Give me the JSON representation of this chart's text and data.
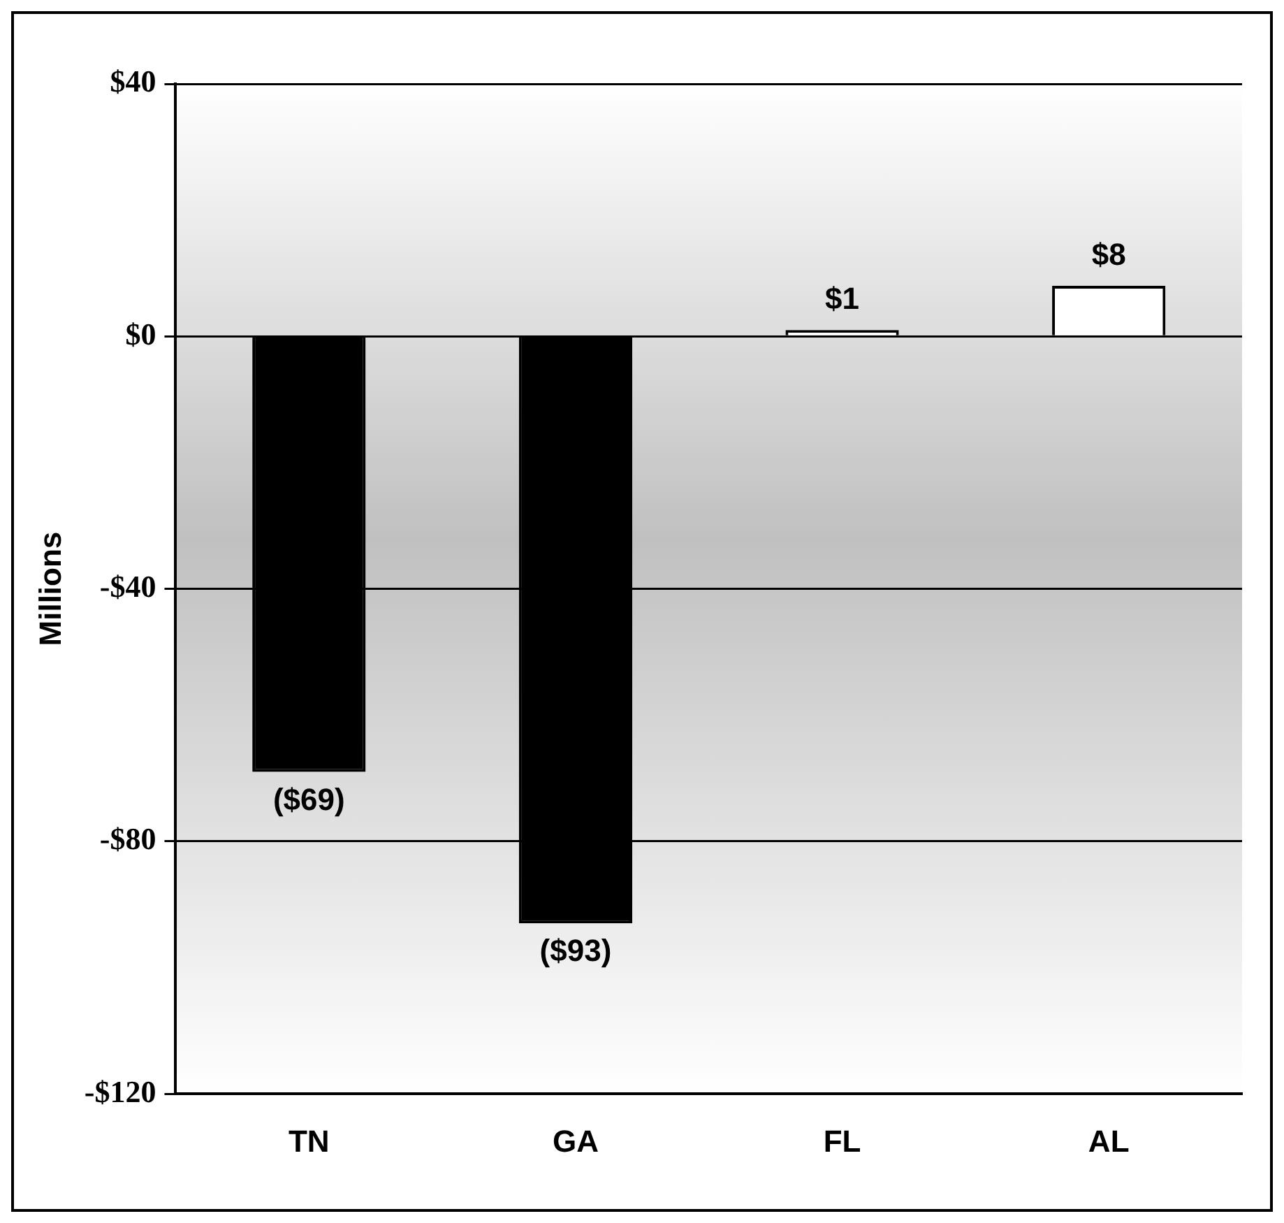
{
  "chart_data": {
    "type": "bar",
    "ylabel": "Millions",
    "categories": [
      "TN",
      "GA",
      "FL",
      "AL"
    ],
    "values": [
      -69,
      -93,
      1,
      8
    ],
    "colors": [
      "#000000",
      "#000000",
      "#ffffff",
      "#ffffff"
    ],
    "value_labels": [
      "($69)",
      "($93)",
      "$1",
      "$8"
    ],
    "ylim": [
      -120,
      40
    ],
    "yticks": [
      {
        "value": 40,
        "label": "$40"
      },
      {
        "value": 0,
        "label": "$0"
      },
      {
        "value": -40,
        "label": "-$40"
      },
      {
        "value": -80,
        "label": "-$80"
      },
      {
        "value": -120,
        "label": "-$120"
      }
    ],
    "grid": "y",
    "legend": false
  }
}
